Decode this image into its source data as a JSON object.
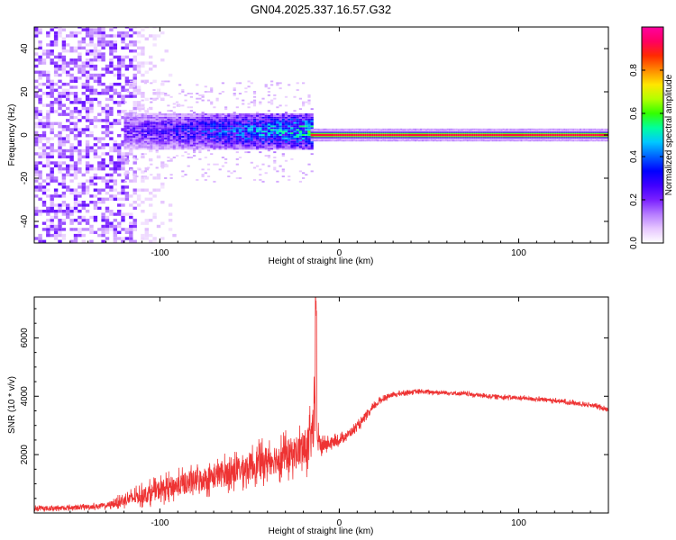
{
  "chart_data": [
    {
      "type": "heatmap",
      "title": "GN04.2025.337.16.57.G32",
      "xlabel": "Height of straight line (km)",
      "ylabel": "Frequency (Hz)",
      "xlim": [
        -170,
        150
      ],
      "ylim": [
        -50,
        50
      ],
      "xticks": [
        -100,
        0,
        100
      ],
      "yticks": [
        -40,
        -20,
        0,
        20,
        40
      ],
      "colorbar": {
        "label": "Normalized spectral amplitude",
        "range": [
          0,
          1
        ],
        "ticks": [
          0,
          0.2,
          0.4,
          0.6,
          0.8
        ],
        "colormap": [
          "#ffffff",
          "#e6c6ff",
          "#b67cff",
          "#7a20ff",
          "#3f00ff",
          "#0000ff",
          "#0060ff",
          "#00c8ff",
          "#00ff9e",
          "#33ff00",
          "#b4ff00",
          "#ffe600",
          "#ff8a00",
          "#ff2a00",
          "#ff0060",
          "#ff00a0"
        ]
      },
      "regions": [
        {
          "name": "noise",
          "x_range": [
            -170,
            -115
          ],
          "freq_range": [
            -50,
            50
          ],
          "amplitude": 0.12
        },
        {
          "name": "fading-noise",
          "x_range": [
            -115,
            -90
          ],
          "freq_range": [
            -50,
            50
          ],
          "amplitude": 0.05
        },
        {
          "name": "broad-signal",
          "x_range": [
            -120,
            -16
          ],
          "center_hz": 1.5,
          "halfwidth_hz": 6,
          "amplitude": 0.35
        },
        {
          "name": "carrier",
          "x_range": [
            -16,
            150
          ],
          "center_hz": 0,
          "halfwidth_hz": 1.5,
          "amplitude": 0.95
        }
      ]
    },
    {
      "type": "line",
      "xlabel": "Height of straight line (km)",
      "ylabel": "SNR (10 * v/v)",
      "xlim": [
        -170,
        150
      ],
      "ylim": [
        0,
        7400
      ],
      "xticks": [
        -100,
        0,
        100
      ],
      "yticks": [
        2000,
        4000,
        6000
      ],
      "color": "#ee3333",
      "series": [
        {
          "name": "SNR",
          "x": [
            -170,
            -150,
            -130,
            -110,
            -100,
            -90,
            -80,
            -70,
            -60,
            -50,
            -40,
            -30,
            -25,
            -20,
            -17,
            -15,
            -14,
            -13,
            -12,
            -10,
            -5,
            0,
            5,
            10,
            15,
            20,
            25,
            30,
            35,
            40,
            50,
            60,
            70,
            80,
            90,
            100,
            110,
            120,
            130,
            140,
            150
          ],
          "mean": [
            150,
            180,
            250,
            600,
            800,
            950,
            1100,
            1250,
            1400,
            1600,
            1800,
            1950,
            2050,
            2200,
            2300,
            2800,
            3100,
            2800,
            2500,
            2300,
            2400,
            2500,
            2700,
            2950,
            3300,
            3700,
            3950,
            4050,
            4100,
            4150,
            4150,
            4120,
            4080,
            4020,
            3980,
            3940,
            3900,
            3850,
            3780,
            3700,
            3550
          ],
          "spread": [
            120,
            120,
            150,
            450,
            550,
            600,
            650,
            700,
            750,
            800,
            850,
            900,
            950,
            1000,
            1150,
            1400,
            1600,
            1400,
            700,
            450,
            300,
            250,
            220,
            220,
            200,
            180,
            150,
            120,
            120,
            110,
            110,
            110,
            110,
            110,
            110,
            110,
            110,
            110,
            110,
            110,
            110
          ],
          "peak": {
            "x": -13,
            "y": 7400
          }
        }
      ]
    }
  ]
}
